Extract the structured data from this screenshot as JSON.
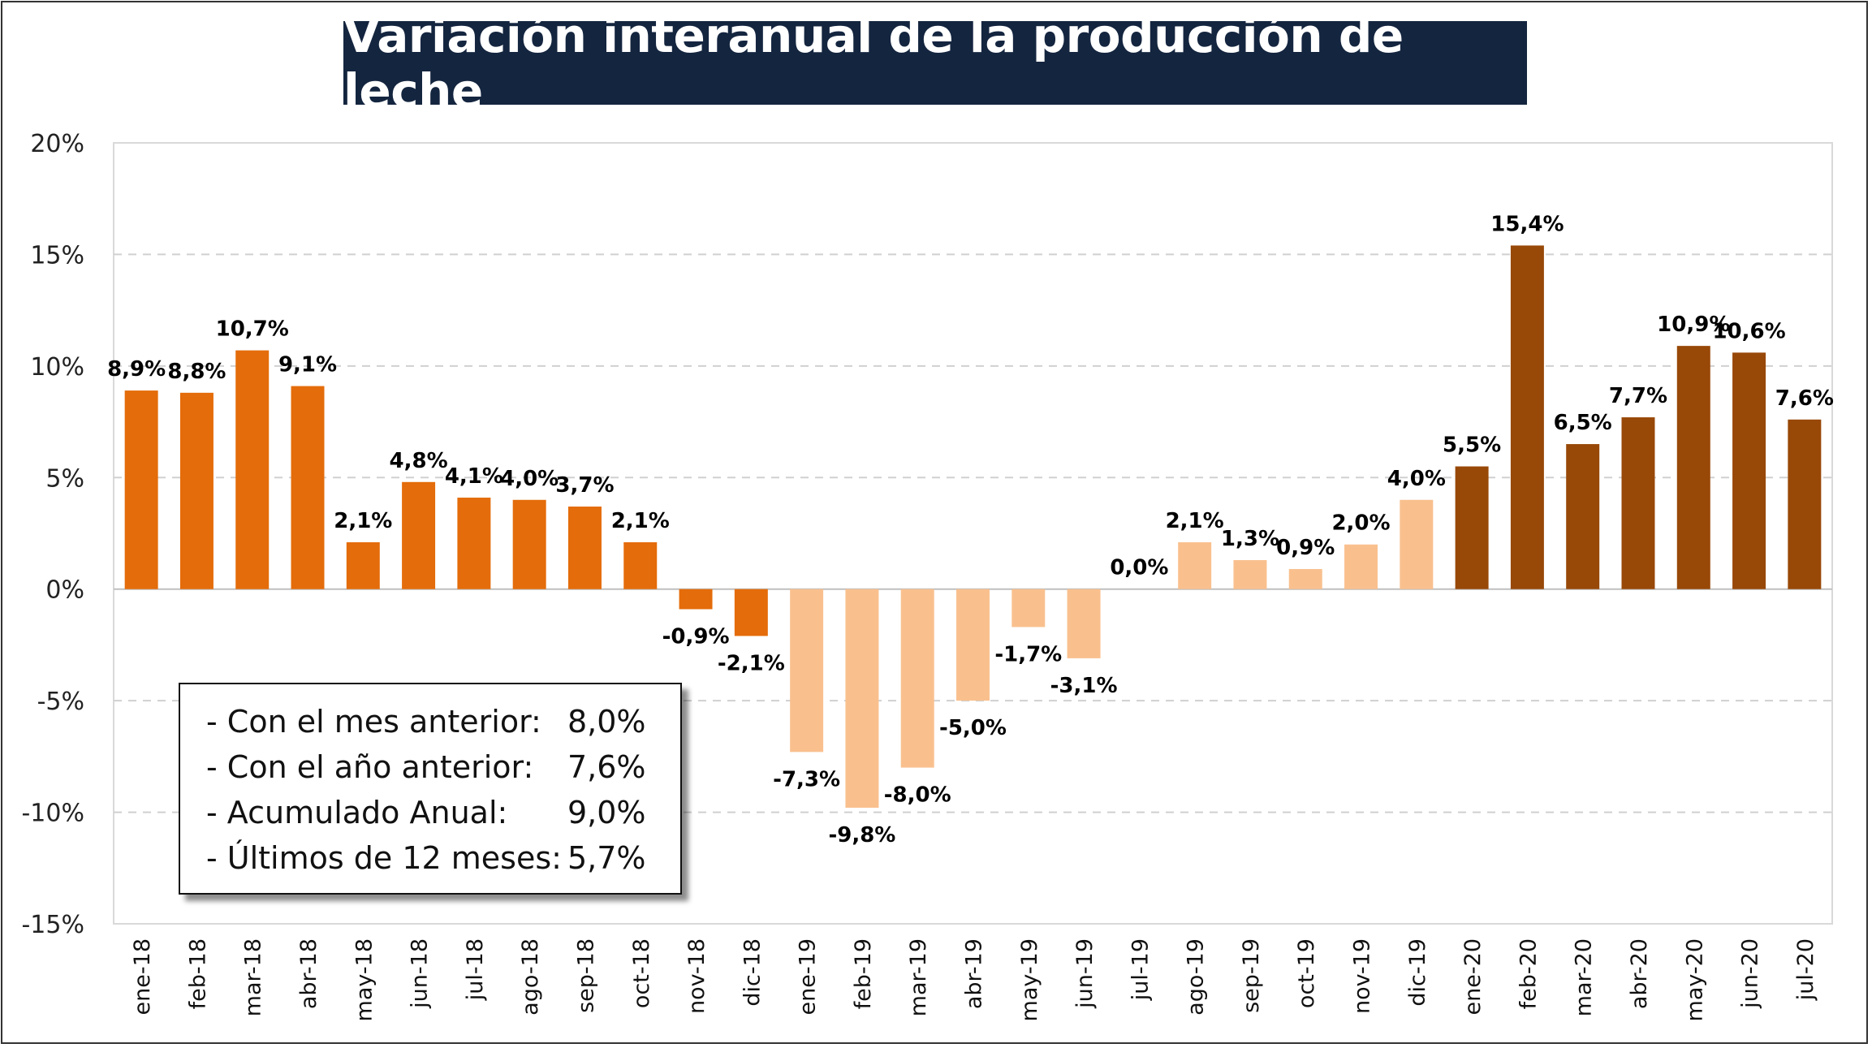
{
  "title": "Variación interanual de la producción de leche",
  "legend_box": [
    {
      "label": "- Con el mes anterior:",
      "value": "8,0%"
    },
    {
      "label": "- Con el año anterior:",
      "value": "7,6%"
    },
    {
      "label": "- Acumulado Anual:",
      "value": "9,0%"
    },
    {
      "label": "- Últimos de 12 meses:",
      "value": "5,7%"
    }
  ],
  "colors": {
    "2018": "#e46c0a",
    "2019": "#f9c08e",
    "2020": "#984807",
    "title_bg": "#14253f"
  },
  "chart_data": {
    "type": "bar",
    "title": "Variación interanual de la producción de leche",
    "xlabel": "",
    "ylabel": "",
    "ylim": [
      -15,
      20
    ],
    "yticks": [
      -15,
      -10,
      -5,
      0,
      5,
      10,
      15,
      20
    ],
    "ytick_labels": [
      "-15%",
      "-10%",
      "-5%",
      "0%",
      "5%",
      "10%",
      "15%",
      "20%"
    ],
    "grid": "horizontal dashed",
    "categories": [
      "ene-18",
      "feb-18",
      "mar-18",
      "abr-18",
      "may-18",
      "jun-18",
      "jul-18",
      "ago-18",
      "sep-18",
      "oct-18",
      "nov-18",
      "dic-18",
      "ene-19",
      "feb-19",
      "mar-19",
      "abr-19",
      "may-19",
      "jun-19",
      "jul-19",
      "ago-19",
      "sep-19",
      "oct-19",
      "nov-19",
      "dic-19",
      "ene-20",
      "feb-20",
      "mar-20",
      "abr-20",
      "may-20",
      "jun-20",
      "jul-20"
    ],
    "values": [
      8.9,
      8.8,
      10.7,
      9.1,
      2.1,
      4.8,
      4.1,
      4.0,
      3.7,
      2.1,
      -0.9,
      -2.1,
      -7.3,
      -9.8,
      -8.0,
      -5.0,
      -1.7,
      -3.1,
      0.0,
      2.1,
      1.3,
      0.9,
      2.0,
      4.0,
      5.5,
      15.4,
      6.5,
      7.7,
      10.9,
      10.6,
      7.6
    ],
    "labels": [
      "8,9%",
      "8,8%",
      "10,7%",
      "9,1%",
      "2,1%",
      "4,8%",
      "4,1%",
      "4,0%",
      "3,7%",
      "2,1%",
      "-0,9%",
      "-2,1%",
      "-7,3%",
      "-9,8%",
      "-8,0%",
      "-5,0%",
      "-1,7%",
      "-3,1%",
      "0,0%",
      "2,1%",
      "1,3%",
      "0,9%",
      "2,0%",
      "4,0%",
      "5,5%",
      "15,4%",
      "6,5%",
      "7,7%",
      "10,9%",
      "10,6%",
      "7,6%"
    ],
    "groups": [
      "2018",
      "2018",
      "2018",
      "2018",
      "2018",
      "2018",
      "2018",
      "2018",
      "2018",
      "2018",
      "2018",
      "2018",
      "2019",
      "2019",
      "2019",
      "2019",
      "2019",
      "2019",
      "2019",
      "2019",
      "2019",
      "2019",
      "2019",
      "2019",
      "2020",
      "2020",
      "2020",
      "2020",
      "2020",
      "2020",
      "2020"
    ]
  }
}
